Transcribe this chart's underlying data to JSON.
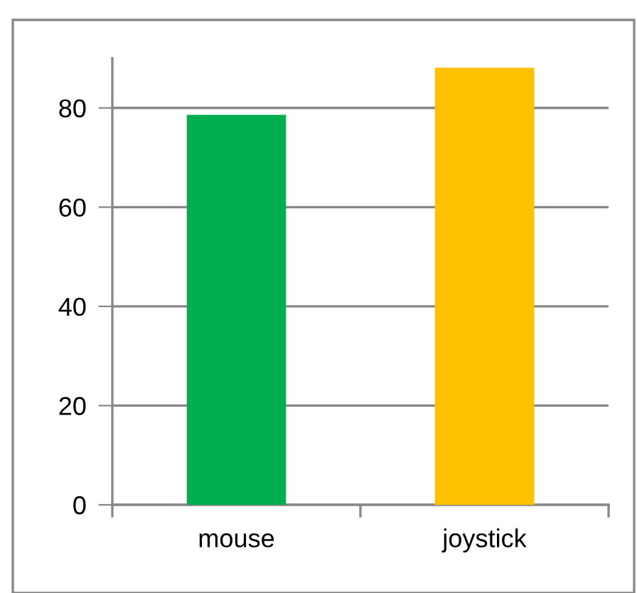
{
  "chart_data": {
    "type": "bar",
    "categories": [
      "mouse",
      "joystick"
    ],
    "values": [
      78.6,
      88.1
    ],
    "colors": [
      "#00ae50",
      "#ffc000"
    ],
    "ylim": [
      0,
      90
    ],
    "yticks": [
      0,
      20,
      40,
      60,
      80
    ],
    "grid": "y"
  }
}
